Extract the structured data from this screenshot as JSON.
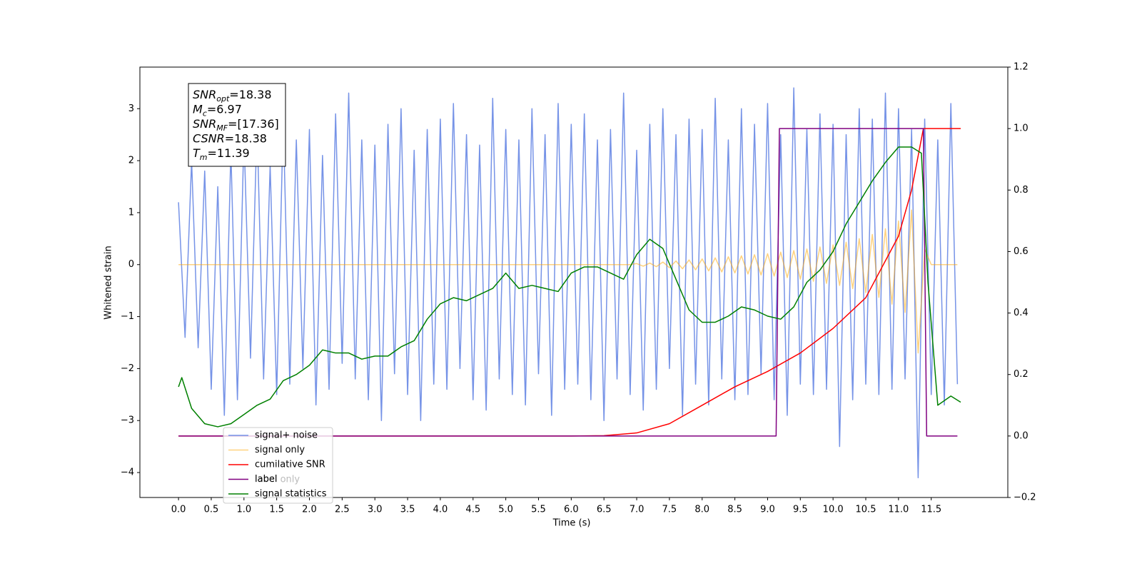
{
  "chart_data": {
    "type": "line",
    "xlabel": "Time (s)",
    "ylabel": "Whitened strain",
    "xlim": [
      -0.59,
      12.67
    ],
    "ylim": [
      -4.48,
      3.8
    ],
    "y2lim": [
      -0.2,
      1.2
    ],
    "xticks": [
      {
        "value": 0,
        "label": "0.0"
      },
      0.5,
      {
        "value": 1,
        "label": "1.0"
      },
      1.5,
      {
        "value": 2,
        "label": "2.0"
      },
      2.5,
      {
        "value": 3,
        "label": "3.0"
      },
      3.5,
      {
        "value": 4,
        "label": "4.0"
      },
      4.5,
      {
        "value": 5,
        "label": "5.0"
      },
      5.5,
      {
        "value": 6,
        "label": "6.0"
      },
      6.5,
      {
        "value": 7,
        "label": "7.0"
      },
      7.5,
      {
        "value": 8,
        "label": "8.0"
      },
      8.5,
      {
        "value": 9,
        "label": "9.0"
      },
      9.5,
      {
        "value": 10,
        "label": "10.0"
      },
      10.5,
      {
        "value": 11,
        "label": "11.0"
      },
      11.5
    ],
    "yticks": [
      {
        "value": -4,
        "label": "−4"
      },
      {
        "value": -3,
        "label": "−3"
      },
      {
        "value": -2,
        "label": "−2"
      },
      {
        "value": -1,
        "label": "−1"
      },
      0,
      1,
      2,
      3
    ],
    "y2ticks": [
      {
        "value": -0.2,
        "label": "−0.2"
      },
      {
        "value": 0,
        "label": "0.0"
      },
      0.2,
      0.4,
      0.6,
      0.8,
      {
        "value": 1,
        "label": "1.0"
      },
      1.2
    ],
    "grid": false,
    "annotation_lines": [
      {
        "name": "SNR",
        "sub": "opt",
        "value": "=18.38"
      },
      {
        "name": "M",
        "sub": "c",
        "value": "=6.97"
      },
      {
        "name": "SNR",
        "sub": "MF",
        "value": "=[17.36]"
      },
      {
        "name": "CSNR",
        "value": "=18.38"
      },
      {
        "name": "T",
        "sub": "m",
        "value": "=11.39"
      }
    ],
    "legend_loc": "lower left",
    "legend_hidden_text": "label only",
    "x": [
      0.0,
      0.1,
      0.2,
      0.3,
      0.4,
      0.5,
      0.6,
      0.7,
      0.8,
      0.9,
      1.0,
      1.1,
      1.2,
      1.3,
      1.4,
      1.5,
      1.6,
      1.7,
      1.8,
      1.9,
      2.0,
      2.1,
      2.2,
      2.3,
      2.4,
      2.5,
      2.6,
      2.7,
      2.8,
      2.9,
      3.0,
      3.1,
      3.2,
      3.3,
      3.4,
      3.5,
      3.6,
      3.7,
      3.8,
      3.9,
      4.0,
      4.1,
      4.2,
      4.3,
      4.4,
      4.5,
      4.6,
      4.7,
      4.8,
      4.9,
      5.0,
      5.1,
      5.2,
      5.3,
      5.4,
      5.5,
      5.6,
      5.7,
      5.8,
      5.9,
      6.0,
      6.1,
      6.2,
      6.3,
      6.4,
      6.5,
      6.6,
      6.7,
      6.8,
      6.9,
      7.0,
      7.1,
      7.2,
      7.3,
      7.4,
      7.5,
      7.6,
      7.7,
      7.8,
      7.9,
      8.0,
      8.1,
      8.2,
      8.3,
      8.4,
      8.5,
      8.6,
      8.7,
      8.8,
      8.9,
      9.0,
      9.1,
      9.2,
      9.3,
      9.4,
      9.5,
      9.6,
      9.7,
      9.8,
      9.9,
      10.0,
      10.1,
      10.2,
      10.3,
      10.4,
      10.5,
      10.6,
      10.7,
      10.8,
      10.9,
      11.0,
      11.1,
      11.2,
      11.3,
      11.4,
      11.5,
      11.6,
      11.7,
      11.8,
      11.9
    ],
    "series": [
      {
        "name": "signal+ noise",
        "color": "#6f8de6",
        "alpha": 0.95,
        "values": [
          1.2,
          -1.4,
          2.0,
          -1.6,
          1.8,
          -2.4,
          1.5,
          -2.9,
          2.2,
          -2.6,
          2.5,
          -1.8,
          2.7,
          -2.2,
          1.9,
          -2.5,
          2.8,
          -2.3,
          2.4,
          -2.0,
          2.6,
          -2.7,
          2.1,
          -2.4,
          2.9,
          -1.9,
          3.3,
          -2.2,
          2.4,
          -2.6,
          2.3,
          -3.0,
          2.7,
          -2.1,
          3.0,
          -2.5,
          2.2,
          -3.0,
          2.6,
          -2.3,
          2.8,
          -2.4,
          3.1,
          -2.0,
          2.5,
          -2.6,
          2.3,
          -2.8,
          3.2,
          -2.2,
          2.6,
          -2.5,
          2.4,
          -2.7,
          3.0,
          -2.1,
          2.5,
          -2.9,
          3.1,
          -2.4,
          2.7,
          -2.3,
          2.9,
          -2.6,
          2.4,
          -3.0,
          2.6,
          -2.2,
          3.3,
          -2.5,
          2.2,
          -2.8,
          2.7,
          -2.4,
          3.0,
          -2.0,
          2.5,
          -2.9,
          2.8,
          -2.3,
          2.6,
          -2.7,
          3.2,
          -2.2,
          2.4,
          -2.6,
          3.0,
          -2.5,
          2.7,
          -2.1,
          3.1,
          -2.6,
          2.5,
          -2.9,
          3.4,
          -2.3,
          2.6,
          -2.5,
          2.9,
          -2.4,
          2.7,
          -3.5,
          2.5,
          -2.6,
          3.0,
          -2.3,
          2.8,
          -2.5,
          3.3,
          -2.4,
          3.0,
          -2.2,
          2.6,
          -4.1,
          2.8,
          -2.5,
          2.4,
          -2.7,
          3.1,
          -2.3
        ]
      },
      {
        "name": "signal only",
        "color": "#ffa500",
        "alpha": 0.5,
        "values": [
          0,
          0,
          0,
          0,
          0,
          0,
          0,
          0,
          0,
          0,
          0,
          0,
          0,
          0,
          0,
          0,
          0,
          0,
          0,
          0,
          0,
          0,
          0,
          0,
          0,
          0,
          0,
          0,
          0,
          0,
          0,
          0,
          0,
          0,
          0,
          0,
          0,
          0,
          0,
          0,
          0,
          0,
          0,
          0,
          0,
          0,
          0,
          0,
          0,
          0,
          0,
          0,
          0,
          0,
          0,
          0,
          0,
          0,
          0,
          0,
          0,
          0,
          0,
          0,
          0,
          0,
          0,
          0,
          0,
          0,
          0.02,
          -0.03,
          0.03,
          -0.04,
          0.05,
          -0.06,
          0.07,
          -0.08,
          0.09,
          -0.1,
          0.11,
          -0.12,
          0.13,
          -0.14,
          0.15,
          -0.16,
          0.17,
          -0.18,
          0.19,
          -0.2,
          0.21,
          -0.22,
          0.24,
          -0.25,
          0.27,
          -0.28,
          0.3,
          -0.32,
          0.34,
          -0.36,
          0.38,
          -0.4,
          0.43,
          -0.46,
          0.5,
          -0.54,
          0.58,
          -0.63,
          0.69,
          -0.76,
          0.84,
          -0.92,
          1.05,
          -1.7,
          0.3,
          0,
          0,
          0,
          0,
          0
        ]
      },
      {
        "name": "cumilative SNR",
        "color": "#ff0000",
        "axis": "y2",
        "x": [
          0,
          6,
          6.5,
          7,
          7.5,
          8,
          8.5,
          9,
          9.5,
          10,
          10.5,
          11,
          11.2,
          11.38,
          11.5,
          11.95
        ],
        "values": [
          0,
          0,
          0.001,
          0.01,
          0.04,
          0.1,
          0.16,
          0.21,
          0.27,
          0.35,
          0.45,
          0.65,
          0.8,
          1.0,
          1.0,
          1.0
        ]
      },
      {
        "name": "label",
        "color": "#800080",
        "axis": "y2",
        "x": [
          0,
          9.13,
          9.18,
          11.38,
          11.43,
          11.9
        ],
        "values": [
          0,
          0,
          1,
          1,
          0,
          0
        ]
      },
      {
        "name": "signal statistics",
        "color": "#008000",
        "axis": "y2",
        "x": [
          0,
          0.05,
          0.2,
          0.4,
          0.6,
          0.8,
          1.0,
          1.2,
          1.4,
          1.6,
          1.8,
          2.0,
          2.2,
          2.4,
          2.6,
          2.8,
          3.0,
          3.2,
          3.4,
          3.6,
          3.8,
          4.0,
          4.2,
          4.4,
          4.6,
          4.8,
          5.0,
          5.2,
          5.4,
          5.6,
          5.8,
          6.0,
          6.2,
          6.4,
          6.6,
          6.8,
          7.0,
          7.2,
          7.4,
          7.6,
          7.8,
          8.0,
          8.2,
          8.4,
          8.6,
          8.8,
          9.0,
          9.2,
          9.4,
          9.6,
          9.8,
          10.0,
          10.2,
          10.4,
          10.6,
          10.8,
          11.0,
          11.2,
          11.35,
          11.45,
          11.6,
          11.8,
          11.95
        ],
        "values": [
          0.16,
          0.19,
          0.09,
          0.04,
          0.03,
          0.04,
          0.07,
          0.1,
          0.12,
          0.18,
          0.2,
          0.23,
          0.28,
          0.27,
          0.27,
          0.25,
          0.26,
          0.26,
          0.29,
          0.31,
          0.38,
          0.43,
          0.45,
          0.44,
          0.46,
          0.48,
          0.53,
          0.48,
          0.49,
          0.48,
          0.47,
          0.53,
          0.55,
          0.55,
          0.53,
          0.51,
          0.59,
          0.64,
          0.61,
          0.51,
          0.41,
          0.37,
          0.37,
          0.39,
          0.42,
          0.41,
          0.39,
          0.38,
          0.42,
          0.5,
          0.54,
          0.6,
          0.69,
          0.76,
          0.83,
          0.89,
          0.94,
          0.94,
          0.92,
          0.5,
          0.1,
          0.13,
          0.11
        ]
      }
    ]
  }
}
